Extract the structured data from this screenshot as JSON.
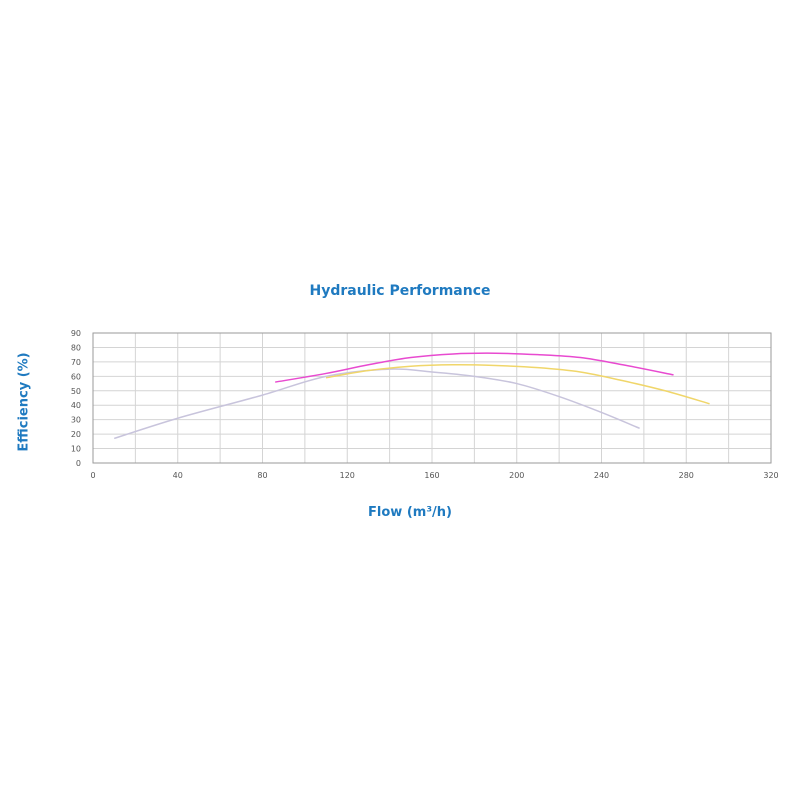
{
  "chart_data": {
    "type": "line",
    "title": "Hydraulic Performance",
    "xlabel": "Flow (m³/h)",
    "ylabel": "Efficiency (%)",
    "xlim": [
      0,
      320
    ],
    "ylim": [
      0,
      90
    ],
    "xticks": [
      0,
      40,
      80,
      120,
      160,
      200,
      240,
      280,
      320
    ],
    "yticks": [
      0,
      10,
      20,
      30,
      40,
      50,
      60,
      70,
      80,
      90
    ],
    "x_grid_step": 20,
    "grid": true,
    "legend": "none",
    "series": [
      {
        "color": "#c8c4dc",
        "points": [
          [
            10,
            17
          ],
          [
            40,
            31
          ],
          [
            80,
            47
          ],
          [
            110,
            60
          ],
          [
            140,
            65
          ],
          [
            160,
            63
          ],
          [
            180,
            60
          ],
          [
            200,
            55
          ],
          [
            220,
            46
          ],
          [
            240,
            35
          ],
          [
            258,
            24
          ]
        ]
      },
      {
        "color": "#f0d66a",
        "points": [
          [
            110,
            59
          ],
          [
            130,
            64
          ],
          [
            150,
            67
          ],
          [
            170,
            68
          ],
          [
            190,
            67.5
          ],
          [
            210,
            66
          ],
          [
            230,
            63
          ],
          [
            250,
            57
          ],
          [
            270,
            50
          ],
          [
            291,
            41
          ]
        ]
      },
      {
        "color": "#e84ad0",
        "points": [
          [
            86,
            56
          ],
          [
            110,
            62
          ],
          [
            130,
            68
          ],
          [
            150,
            73
          ],
          [
            170,
            75.5
          ],
          [
            190,
            76
          ],
          [
            210,
            75
          ],
          [
            230,
            73
          ],
          [
            250,
            68
          ],
          [
            274,
            61
          ]
        ]
      }
    ]
  }
}
